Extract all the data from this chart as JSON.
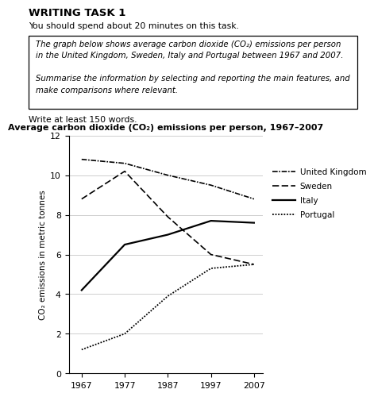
{
  "title": "Average carbon dioxide (CO₂) emissions per person, 1967–2007",
  "ylabel": "CO₂ emissions in metric tonnes",
  "years": [
    1967,
    1977,
    1987,
    1997,
    2007
  ],
  "uk": [
    10.8,
    10.6,
    10.0,
    9.5,
    8.8
  ],
  "sweden": [
    8.8,
    10.2,
    7.9,
    6.0,
    5.5
  ],
  "italy": [
    4.2,
    6.5,
    7.0,
    7.7,
    7.6
  ],
  "portugal": [
    1.2,
    2.0,
    3.9,
    5.3,
    5.5
  ],
  "ylim": [
    0,
    12
  ],
  "yticks": [
    0,
    2,
    4,
    6,
    8,
    10,
    12
  ],
  "writing_task_header": "WRITING TASK 1",
  "subtitle_line1": "You should spend about 20 minutes on this task.",
  "box_line1": "The graph below shows average carbon dioxide (CO₂) emissions per person",
  "box_line2": "in the United Kingdom, Sweden, Italy and Portugal between 1967 and 2007.",
  "box_line3": "Summarise the information by selecting and reporting the main features, and",
  "box_line4": "make comparisons where relevant.",
  "write_note": "Write at least 150 words.",
  "bg_color": "#ffffff",
  "grid_color": "#bbbbbb"
}
